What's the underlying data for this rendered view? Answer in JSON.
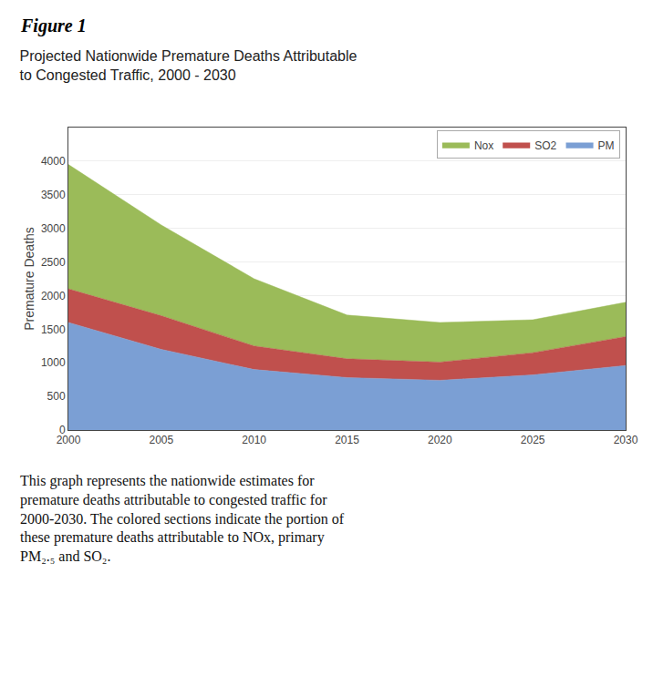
{
  "chart_data": {
    "type": "area",
    "stacked": true,
    "title": "Projected Nationwide Premature Deaths Attributable\nto Congested Traffic, 2000 - 2030",
    "ylabel": "Premature Deaths",
    "x": [
      2000,
      2005,
      2010,
      2015,
      2020,
      2025,
      2030
    ],
    "series": [
      {
        "name": "PM",
        "color": "#7b9fd4",
        "values": [
          1600,
          1200,
          900,
          780,
          740,
          820,
          960
        ]
      },
      {
        "name": "SO2",
        "color": "#c0504d",
        "values": [
          500,
          500,
          350,
          280,
          270,
          330,
          430
        ]
      },
      {
        "name": "Nox",
        "color": "#9bbb59",
        "values": [
          1850,
          1350,
          1000,
          650,
          590,
          490,
          510
        ]
      }
    ],
    "xlim": [
      2000,
      2030
    ],
    "xticks": [
      2000,
      2005,
      2010,
      2015,
      2020,
      2025,
      2030
    ],
    "ylim": [
      0,
      4500
    ],
    "yticks": [
      0,
      500,
      1000,
      1500,
      2000,
      2500,
      3000,
      3500,
      4000
    ],
    "grid": true,
    "legend": "upper right",
    "annotations": [
      "Figure 1",
      "This graph represents the nationwide estimates for\npremature deaths attributable to congested traffic for\n2000-2030. The colored sections indicate the portion of\nthese premature deaths attributable to NOx, primary\nPM₂.₅ and SO₂."
    ]
  }
}
